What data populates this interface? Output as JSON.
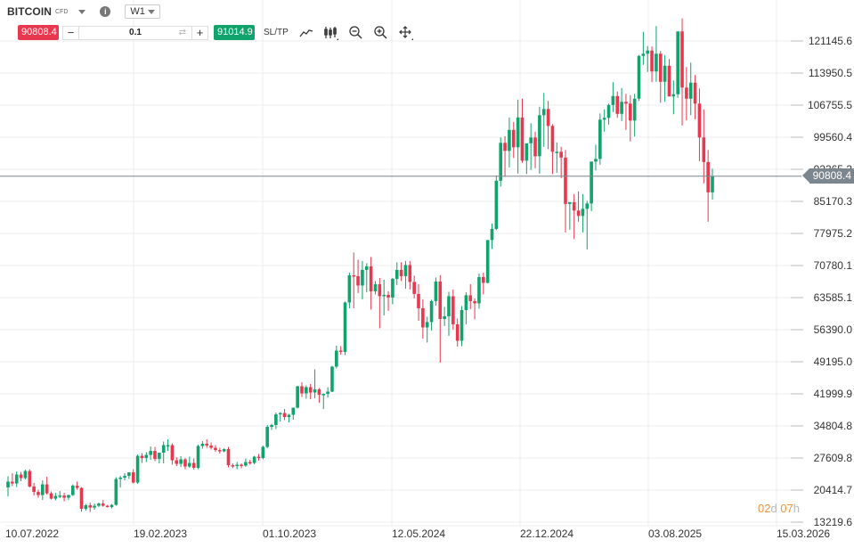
{
  "header": {
    "symbol": "BITCOIN",
    "instrument_type": "CFD",
    "timeframe": "W1"
  },
  "trade_panel": {
    "sell_price": "90808.4",
    "minus_label": "−",
    "volume": "0.1",
    "swap_icon": "⇄",
    "plus_label": "+",
    "buy_price": "91014.9",
    "sltp_label": "SL/TP"
  },
  "toolbar_icons": [
    "line-chart-icon",
    "candlestick-icon",
    "zoom-out-icon",
    "zoom-in-icon",
    "crosshair-icon"
  ],
  "current_price_label": "90808.4",
  "countdown": {
    "days": "02",
    "days_unit": "d",
    "hours": "07",
    "hours_unit": "h"
  },
  "colors": {
    "bull": "#10a36b",
    "bear": "#e8384f",
    "grid": "#eeeeee",
    "price_line": "#7c868e",
    "sell": "#e8384f",
    "buy": "#10a36b",
    "countdown": "#f5943a"
  },
  "chart_data": {
    "type": "candlestick",
    "title": "BITCOIN CFD W1",
    "xlabel": "",
    "ylabel": "",
    "ylim": [
      13219.6,
      121145.6
    ],
    "y_ticks": [
      "121145.6",
      "113950.5",
      "106755.5",
      "99560.4",
      "92365.3",
      "85170.3",
      "77975.2",
      "70780.1",
      "63585.1",
      "56390.0",
      "49195.0",
      "41999.9",
      "34804.8",
      "27609.8",
      "20414.7",
      "13219.6"
    ],
    "x_ticks": [
      "10.07.2022",
      "19.02.2023",
      "01.10.2023",
      "12.05.2024",
      "22.12.2024",
      "03.08.2025",
      "15.03.2026"
    ],
    "current_price": 90808.4,
    "grid": true,
    "candles_ohlc": [
      [
        21000,
        23500,
        19000,
        22300
      ],
      [
        22300,
        24200,
        21300,
        21900
      ],
      [
        21900,
        24600,
        21100,
        23900
      ],
      [
        23900,
        24500,
        22400,
        23100
      ],
      [
        23100,
        25000,
        22800,
        24700
      ],
      [
        24700,
        25100,
        21000,
        21200
      ],
      [
        21200,
        22000,
        19200,
        20000
      ],
      [
        20000,
        20500,
        18700,
        19300
      ],
      [
        19300,
        22600,
        18200,
        21700
      ],
      [
        21700,
        23400,
        19400,
        19700
      ],
      [
        19700,
        20100,
        18300,
        18500
      ],
      [
        18500,
        19800,
        18100,
        19100
      ],
      [
        19100,
        20200,
        18600,
        19200
      ],
      [
        19200,
        19800,
        17900,
        18700
      ],
      [
        18700,
        19400,
        18200,
        19300
      ],
      [
        19300,
        21700,
        19100,
        21400
      ],
      [
        21400,
        22300,
        20500,
        20900
      ],
      [
        20900,
        21100,
        15600,
        16200
      ],
      [
        16200,
        17300,
        15800,
        17000
      ],
      [
        17000,
        17600,
        15500,
        16500
      ],
      [
        16500,
        17400,
        16000,
        16900
      ],
      [
        16900,
        17600,
        16600,
        17400
      ],
      [
        17400,
        18200,
        16700,
        16900
      ],
      [
        16900,
        17100,
        16500,
        16600
      ],
      [
        16600,
        17300,
        16300,
        17100
      ],
      [
        17100,
        23300,
        16900,
        22900
      ],
      [
        22900,
        23600,
        21000,
        23200
      ],
      [
        23200,
        24200,
        22600,
        23600
      ],
      [
        23600,
        24300,
        22900,
        24400
      ],
      [
        24400,
        25100,
        21900,
        22100
      ],
      [
        22100,
        28400,
        21800,
        28100
      ],
      [
        28100,
        28700,
        26500,
        27600
      ],
      [
        27600,
        28900,
        26700,
        28300
      ],
      [
        28300,
        30200,
        27200,
        29200
      ],
      [
        29200,
        30100,
        26900,
        27400
      ],
      [
        27400,
        28500,
        26400,
        28800
      ],
      [
        28800,
        31300,
        26400,
        30500
      ],
      [
        30500,
        31800,
        29200,
        30500
      ],
      [
        30500,
        30900,
        26100,
        27100
      ],
      [
        27100,
        27800,
        25800,
        26300
      ],
      [
        26300,
        28000,
        25600,
        27300
      ],
      [
        27300,
        27600,
        25100,
        25700
      ],
      [
        25700,
        27900,
        25400,
        26500
      ],
      [
        26500,
        27500,
        25000,
        25400
      ],
      [
        25400,
        30600,
        25100,
        30300
      ],
      [
        30300,
        31400,
        29700,
        30800
      ],
      [
        30800,
        31800,
        29900,
        30400
      ],
      [
        30400,
        31100,
        29500,
        29900
      ],
      [
        29900,
        30500,
        29000,
        29400
      ],
      [
        29400,
        29900,
        28600,
        29100
      ],
      [
        29100,
        29800,
        28900,
        29600
      ],
      [
        29600,
        30100,
        25500,
        26000
      ],
      [
        26000,
        26400,
        25300,
        25800
      ],
      [
        25800,
        26700,
        25100,
        26100
      ],
      [
        26100,
        26400,
        25300,
        25900
      ],
      [
        25900,
        27500,
        25600,
        26700
      ],
      [
        26700,
        27200,
        26100,
        26500
      ],
      [
        26500,
        28100,
        26200,
        27900
      ],
      [
        27900,
        28500,
        27000,
        27600
      ],
      [
        27600,
        30400,
        27300,
        30100
      ],
      [
        30100,
        35000,
        29800,
        34600
      ],
      [
        34600,
        35300,
        33900,
        35000
      ],
      [
        35000,
        37800,
        34100,
        37400
      ],
      [
        37400,
        37900,
        35800,
        37700
      ],
      [
        37700,
        38600,
        36100,
        36800
      ],
      [
        36800,
        37500,
        35600,
        37300
      ],
      [
        37300,
        38800,
        36200,
        38900
      ],
      [
        38900,
        43800,
        38700,
        43700
      ],
      [
        43700,
        44600,
        41300,
        42100
      ],
      [
        42100,
        43900,
        40900,
        43500
      ],
      [
        43500,
        44200,
        40800,
        42300
      ],
      [
        42300,
        47500,
        41000,
        43000
      ],
      [
        43000,
        43300,
        40000,
        41800
      ],
      [
        41800,
        42100,
        38600,
        42000
      ],
      [
        42000,
        43500,
        41200,
        42500
      ],
      [
        42500,
        48300,
        42400,
        48100
      ],
      [
        48100,
        52800,
        47700,
        51700
      ],
      [
        51700,
        52700,
        50800,
        51400
      ],
      [
        51400,
        62700,
        50700,
        62500
      ],
      [
        62500,
        69200,
        61200,
        68600
      ],
      [
        68600,
        73700,
        61200,
        68400
      ],
      [
        68400,
        72100,
        64600,
        66300
      ],
      [
        66300,
        71800,
        63200,
        69800
      ],
      [
        69800,
        71300,
        64800,
        70600
      ],
      [
        70600,
        72700,
        60900,
        65000
      ],
      [
        65000,
        67300,
        64300,
        66600
      ],
      [
        66600,
        68000,
        56700,
        63900
      ],
      [
        63900,
        67600,
        59600,
        64200
      ],
      [
        64200,
        65000,
        60600,
        63600
      ],
      [
        63600,
        68000,
        62100,
        67800
      ],
      [
        67800,
        71500,
        66400,
        69800
      ],
      [
        69800,
        71500,
        67300,
        68400
      ],
      [
        68400,
        71800,
        65600,
        70900
      ],
      [
        70900,
        71800,
        65400,
        67100
      ],
      [
        67100,
        68500,
        63400,
        64400
      ],
      [
        64400,
        66600,
        58400,
        61200
      ],
      [
        61200,
        63200,
        54400,
        56900
      ],
      [
        56900,
        59300,
        53500,
        58100
      ],
      [
        58100,
        63100,
        56200,
        62800
      ],
      [
        62800,
        68100,
        61800,
        67200
      ],
      [
        67200,
        68600,
        49000,
        58800
      ],
      [
        58800,
        61500,
        57200,
        59400
      ],
      [
        59400,
        64900,
        55000,
        63900
      ],
      [
        63900,
        65400,
        56400,
        57600
      ],
      [
        57600,
        58900,
        52600,
        53900
      ],
      [
        53900,
        61700,
        52700,
        60800
      ],
      [
        60800,
        64800,
        57600,
        64100
      ],
      [
        64100,
        66600,
        61000,
        62800
      ],
      [
        62800,
        63400,
        58700,
        62300
      ],
      [
        62300,
        69000,
        61100,
        68200
      ],
      [
        68200,
        69200,
        64300,
        66900
      ],
      [
        66900,
        76000,
        66800,
        76500
      ],
      [
        76500,
        80200,
        74500,
        79000
      ],
      [
        79000,
        91000,
        78700,
        89800
      ],
      [
        89800,
        99500,
        88500,
        98300
      ],
      [
        98300,
        99800,
        90700,
        96500
      ],
      [
        96500,
        104000,
        92800,
        101200
      ],
      [
        101200,
        103000,
        94900,
        97300
      ],
      [
        97300,
        108000,
        91400,
        104000
      ],
      [
        104000,
        108200,
        93800,
        94300
      ],
      [
        94300,
        97800,
        91300,
        98200
      ],
      [
        98200,
        102700,
        92200,
        99500
      ],
      [
        99500,
        100800,
        92600,
        95300
      ],
      [
        95300,
        106400,
        91400,
        104500
      ],
      [
        104500,
        109500,
        97400,
        105900
      ],
      [
        105900,
        107700,
        96900,
        102100
      ],
      [
        102100,
        102500,
        91300,
        96300
      ],
      [
        96300,
        98400,
        91600,
        96300
      ],
      [
        96300,
        97400,
        90400,
        95000
      ],
      [
        95000,
        96700,
        78200,
        84600
      ],
      [
        84600,
        85000,
        78800,
        85000
      ],
      [
        85000,
        86800,
        76700,
        83100
      ],
      [
        83100,
        87400,
        80600,
        81900
      ],
      [
        81900,
        86800,
        78200,
        83500
      ],
      [
        83500,
        85300,
        74400,
        84700
      ],
      [
        84700,
        88800,
        83000,
        94100
      ],
      [
        94100,
        97900,
        92100,
        94700
      ],
      [
        94700,
        104900,
        93400,
        103500
      ],
      [
        103500,
        105800,
        100800,
        103900
      ],
      [
        103900,
        107100,
        102400,
        106800
      ],
      [
        106800,
        111900,
        105200,
        108800
      ],
      [
        108800,
        109800,
        103900,
        104800
      ],
      [
        104800,
        110600,
        103200,
        107500
      ],
      [
        107500,
        109300,
        101200,
        107100
      ],
      [
        107100,
        109000,
        98600,
        103300
      ],
      [
        103300,
        109300,
        99700,
        108200
      ],
      [
        108200,
        118000,
        107700,
        117800
      ],
      [
        117800,
        123200,
        115800,
        118300
      ],
      [
        118300,
        120000,
        114200,
        119000
      ],
      [
        119000,
        119900,
        111900,
        114300
      ],
      [
        114300,
        124500,
        112000,
        118300
      ],
      [
        118300,
        118900,
        107300,
        112000
      ],
      [
        112000,
        118000,
        107500,
        115600
      ],
      [
        115600,
        117100,
        109800,
        108700
      ],
      [
        108700,
        112300,
        104700,
        109200
      ],
      [
        109200,
        118000,
        108400,
        123300
      ],
      [
        123300,
        126200,
        102200,
        110700
      ],
      [
        110700,
        115300,
        103300,
        108200
      ],
      [
        108200,
        116300,
        104500,
        111800
      ],
      [
        111800,
        113500,
        103600,
        107100
      ],
      [
        107100,
        110500,
        94200,
        99500
      ],
      [
        99500,
        105800,
        89200,
        94000
      ],
      [
        94000,
        96700,
        80600,
        87200
      ],
      [
        87200,
        92500,
        85600,
        90808
      ]
    ]
  }
}
